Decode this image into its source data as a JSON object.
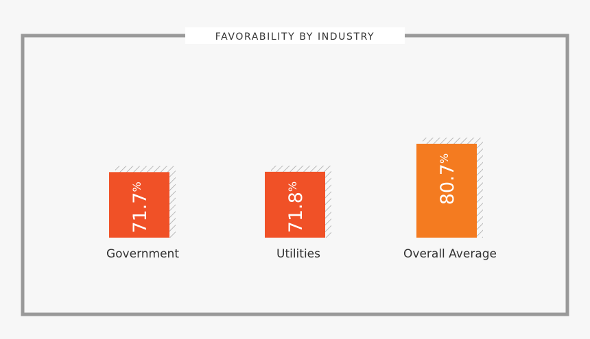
{
  "chart_data": {
    "type": "bar",
    "title": "FAVORABILITY BY INDUSTRY",
    "categories": [
      "Government",
      "Utilities",
      "Overall Average"
    ],
    "values": [
      71.7,
      71.8,
      80.7
    ],
    "value_suffix": "%",
    "xlabel": "",
    "ylabel": "",
    "grid": false,
    "colors": [
      "#f05127",
      "#f05127",
      "#f47b20"
    ]
  },
  "colors": {
    "background": "#f7f7f7",
    "frame": "#999999",
    "hatch": "#aaaaaa",
    "text": "#333333"
  }
}
